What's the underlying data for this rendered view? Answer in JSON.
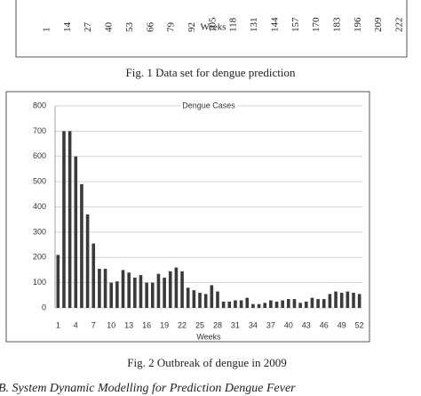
{
  "figure1": {
    "x_tick_labels": [
      "1",
      "14",
      "27",
      "40",
      "53",
      "66",
      "79",
      "92",
      "105",
      "118",
      "131",
      "144",
      "157",
      "170",
      "183",
      "196",
      "209",
      "222"
    ],
    "x_label": "Weeks",
    "caption": "Fig. 1 Data set for dengue prediction"
  },
  "chart_data": {
    "type": "bar",
    "title": "Dengue Cases",
    "x_label": "Weeks",
    "caption": "Fig. 2 Outbreak of dengue in 2009",
    "categories": [
      "1",
      null,
      null,
      "4",
      null,
      null,
      "7",
      null,
      null,
      "10",
      null,
      null,
      "13",
      null,
      null,
      "16",
      null,
      null,
      "19",
      null,
      null,
      "22",
      null,
      null,
      "25",
      null,
      null,
      "28",
      null,
      null,
      "31",
      null,
      null,
      "34",
      null,
      null,
      "37",
      null,
      null,
      "40",
      null,
      null,
      "43",
      null,
      null,
      "46",
      null,
      null,
      "49",
      null,
      null,
      "52"
    ],
    "values": [
      210,
      700,
      700,
      600,
      490,
      370,
      255,
      155,
      155,
      100,
      105,
      150,
      140,
      120,
      130,
      100,
      100,
      135,
      120,
      145,
      160,
      145,
      80,
      70,
      60,
      55,
      90,
      65,
      25,
      25,
      30,
      30,
      40,
      15,
      15,
      20,
      30,
      25,
      30,
      35,
      35,
      20,
      25,
      40,
      35,
      35,
      55,
      65,
      60,
      65,
      60,
      55
    ],
    "color": "#3a3a3a",
    "ylim": [
      0,
      800
    ],
    "yticks": [
      0,
      100,
      200,
      300,
      400,
      500,
      600,
      700,
      800
    ],
    "grid": true
  },
  "section_heading": "B.  System Dynamic Modelling for Prediction Dengue Fever"
}
